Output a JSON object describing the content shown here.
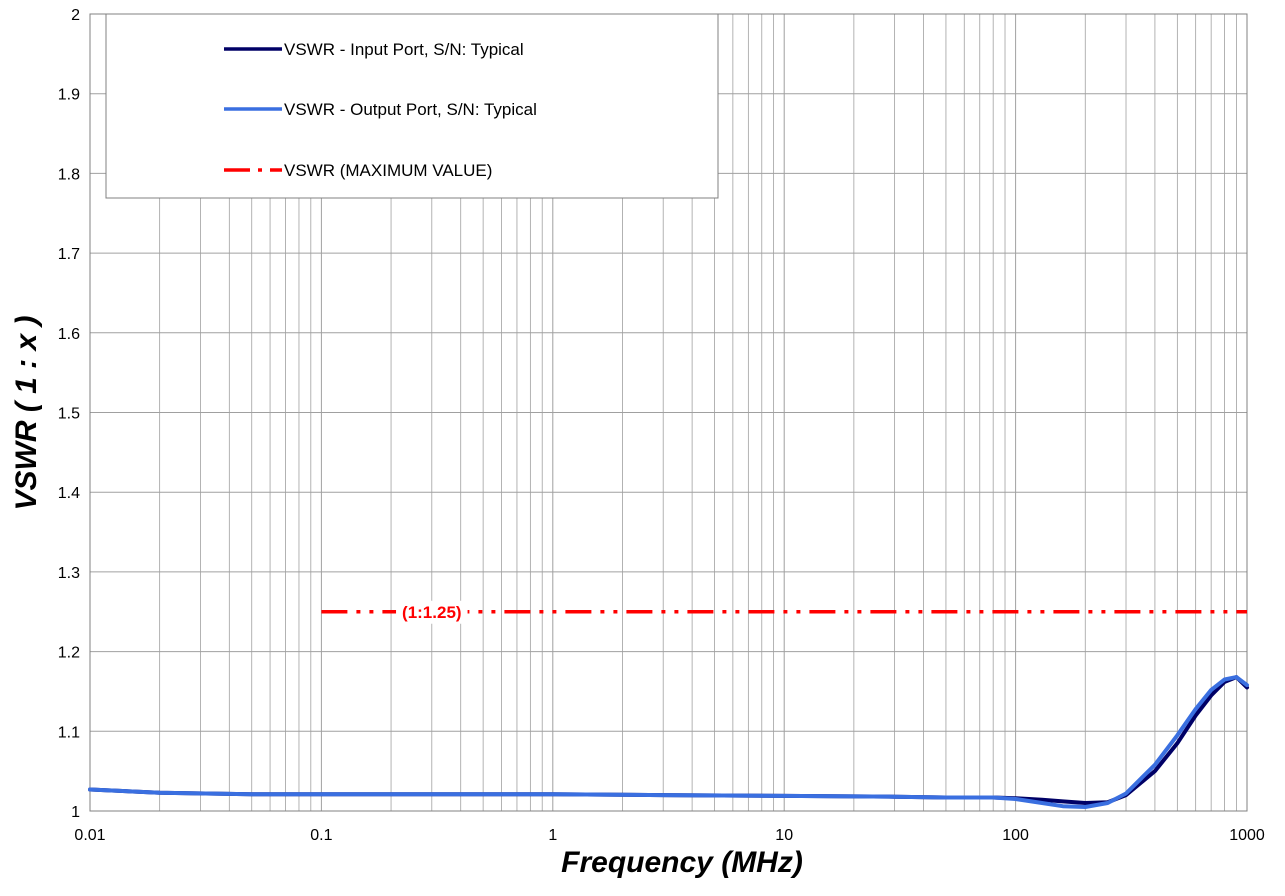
{
  "chart_data": {
    "type": "line",
    "title": "",
    "xlabel": "Frequency (MHz)",
    "ylabel": "VSWR ( 1 : x )",
    "x_scale": "log",
    "xlim": [
      0.01,
      1000
    ],
    "ylim": [
      1,
      2
    ],
    "x_ticks": [
      "0.01",
      "0.1",
      "1",
      "10",
      "100",
      "1000"
    ],
    "y_ticks": [
      "1",
      "1.1",
      "1.2",
      "1.3",
      "1.4",
      "1.5",
      "1.6",
      "1.7",
      "1.8",
      "1.9",
      "2"
    ],
    "grid": true,
    "legend_position": "top-left",
    "series": [
      {
        "name": "VSWR - Input Port, S/N: Typical",
        "color": "#000066",
        "style": "solid",
        "x": [
          0.01,
          0.02,
          0.05,
          0.1,
          0.3,
          1,
          3,
          10,
          30,
          50,
          80,
          100,
          130,
          160,
          200,
          250,
          300,
          400,
          500,
          600,
          700,
          800,
          900,
          1000
        ],
        "y": [
          1.027,
          1.023,
          1.021,
          1.021,
          1.021,
          1.021,
          1.02,
          1.019,
          1.018,
          1.017,
          1.017,
          1.016,
          1.014,
          1.012,
          1.01,
          1.011,
          1.02,
          1.05,
          1.085,
          1.12,
          1.145,
          1.162,
          1.168,
          1.155
        ]
      },
      {
        "name": "VSWR - Output Port, S/N: Typical",
        "color": "#3a6fe0",
        "style": "solid",
        "x": [
          0.01,
          0.02,
          0.05,
          0.1,
          0.3,
          1,
          3,
          10,
          30,
          50,
          80,
          100,
          130,
          160,
          200,
          250,
          300,
          400,
          500,
          600,
          700,
          800,
          900,
          1000
        ],
        "y": [
          1.027,
          1.023,
          1.021,
          1.021,
          1.021,
          1.021,
          1.02,
          1.019,
          1.018,
          1.017,
          1.017,
          1.015,
          1.01,
          1.006,
          1.005,
          1.01,
          1.022,
          1.058,
          1.095,
          1.128,
          1.152,
          1.165,
          1.168,
          1.158
        ]
      },
      {
        "name": "VSWR (MAXIMUM VALUE)",
        "color": "#ff0000",
        "style": "dash-dot-dot",
        "x": [
          0.1,
          1000
        ],
        "y": [
          1.25,
          1.25
        ]
      }
    ],
    "annotations": [
      {
        "text": "(1:1.25)",
        "x": 0.3,
        "y": 1.25
      }
    ]
  }
}
